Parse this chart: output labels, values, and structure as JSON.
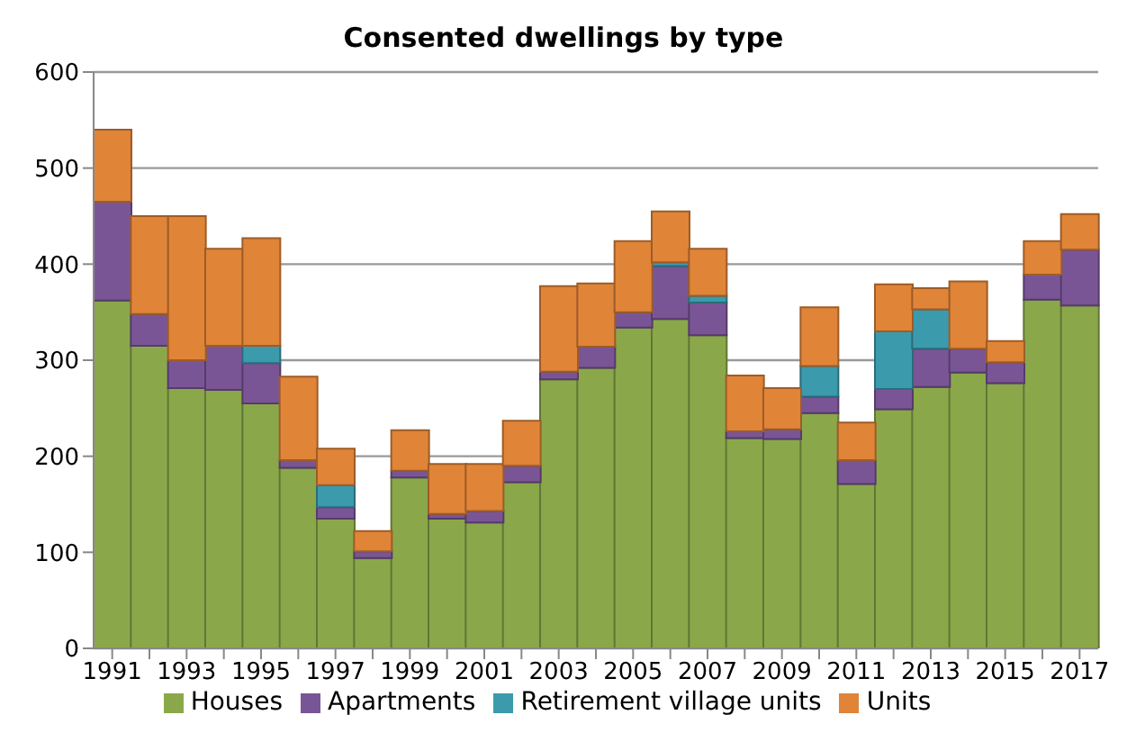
{
  "chart_data": {
    "type": "bar",
    "title": "Consented dwellings by type",
    "stacked": true,
    "categories": [
      "1991",
      null,
      "1993",
      null,
      "1995",
      null,
      "1997",
      null,
      "1999",
      null,
      "2001",
      null,
      "2003",
      null,
      "2005",
      null,
      "2007",
      null,
      "2009",
      null,
      "2011",
      null,
      "2013",
      null,
      "2015",
      null,
      "2017"
    ],
    "series": [
      {
        "name": "Houses",
        "color": "#8aa84a",
        "values": [
          362,
          315,
          271,
          269,
          255,
          188,
          135,
          94,
          178,
          135,
          131,
          173,
          280,
          292,
          334,
          343,
          326,
          219,
          218,
          245,
          171,
          249,
          272,
          287,
          276,
          363,
          357
        ]
      },
      {
        "name": "Apartments",
        "color": "#7a5596",
        "values": [
          103,
          33,
          29,
          46,
          42,
          8,
          12,
          7,
          7,
          5,
          12,
          17,
          8,
          22,
          16,
          55,
          34,
          7,
          10,
          17,
          25,
          21,
          40,
          25,
          22,
          26,
          58
        ]
      },
      {
        "name": "Retirement village units",
        "color": "#3c9aad",
        "values": [
          0,
          0,
          0,
          0,
          18,
          0,
          23,
          0,
          0,
          0,
          0,
          0,
          0,
          0,
          0,
          4,
          7,
          0,
          0,
          32,
          0,
          60,
          41,
          0,
          0,
          0,
          0
        ]
      },
      {
        "name": "Units",
        "color": "#e08438",
        "values": [
          75,
          102,
          150,
          101,
          112,
          87,
          38,
          21,
          42,
          52,
          49,
          47,
          89,
          66,
          74,
          53,
          49,
          58,
          43,
          61,
          39,
          49,
          22,
          70,
          22,
          35,
          37
        ]
      }
    ],
    "ylim": [
      0,
      600
    ],
    "yticks": [
      0,
      100,
      200,
      300,
      400,
      500,
      600
    ],
    "grid": "y",
    "legend": "bottom"
  }
}
